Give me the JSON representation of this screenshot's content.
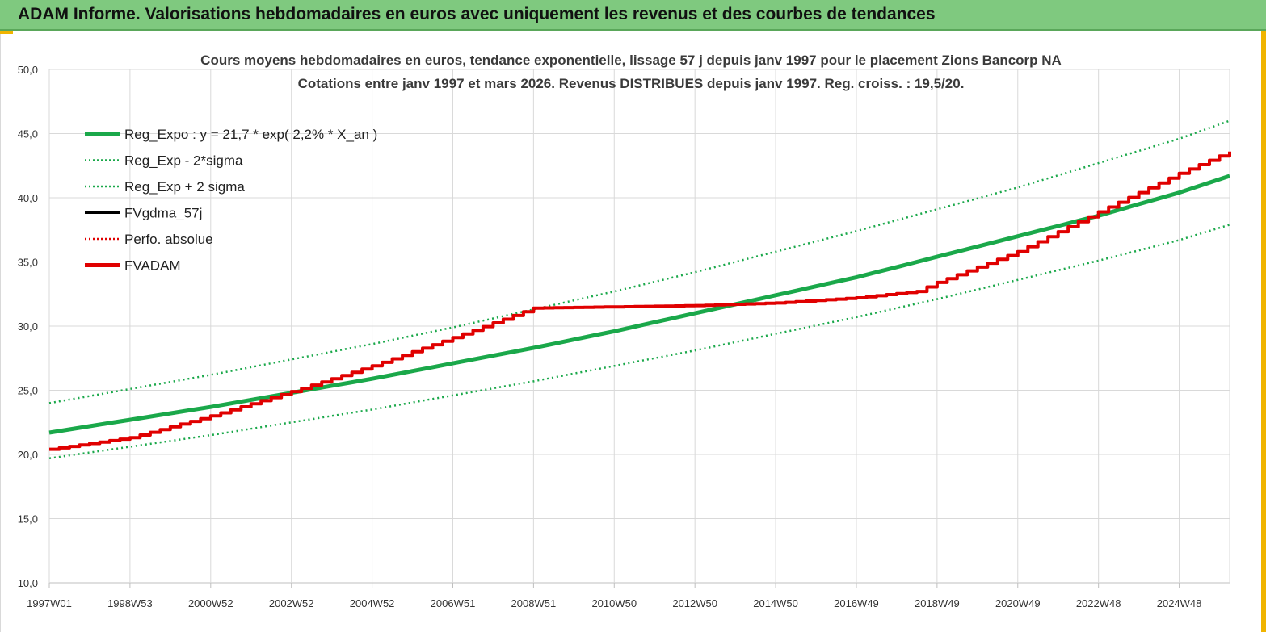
{
  "header": {
    "title": "ADAM Informe. Valorisations hebdomadaires en euros avec uniquement les revenus et des courbes de tendances"
  },
  "colors": {
    "green": "#1aa84a",
    "red": "#e00000",
    "black": "#000000",
    "header_bg": "#7fc97f",
    "accent": "#f0b400"
  },
  "chart_data": {
    "type": "line",
    "title": [
      "Cours moyens hebdomadaires en euros, tendance exponentielle, lissage 57 j depuis janv 1997 pour le placement Zions Bancorp NA",
      "Cotations entre janv 1997 et mars 2026. Revenus DISTRIBUES depuis janv 1997. Reg. croiss. : 19,5/20."
    ],
    "ylim": [
      10,
      50
    ],
    "yticks": [
      10,
      15,
      20,
      25,
      30,
      35,
      40,
      45,
      50
    ],
    "ytick_labels": [
      "10,0",
      "15,0",
      "20,0",
      "25,0",
      "30,0",
      "35,0",
      "40,0",
      "45,0",
      "50,0"
    ],
    "x_range_years": [
      1997.0,
      2026.25
    ],
    "xticks": [
      {
        "label": "1997W01",
        "year": 1997.0
      },
      {
        "label": "1998W53",
        "year": 1999.0
      },
      {
        "label": "2000W52",
        "year": 2001.0
      },
      {
        "label": "2002W52",
        "year": 2003.0
      },
      {
        "label": "2004W52",
        "year": 2005.0
      },
      {
        "label": "2006W51",
        "year": 2007.0
      },
      {
        "label": "2008W51",
        "year": 2009.0
      },
      {
        "label": "2010W50",
        "year": 2011.0
      },
      {
        "label": "2012W50",
        "year": 2013.0
      },
      {
        "label": "2014W50",
        "year": 2015.0
      },
      {
        "label": "2016W49",
        "year": 2017.0
      },
      {
        "label": "2018W49",
        "year": 2019.0
      },
      {
        "label": "2020W49",
        "year": 2021.0
      },
      {
        "label": "2022W48",
        "year": 2023.0
      },
      {
        "label": "2024W48",
        "year": 2025.0
      }
    ],
    "grid": true,
    "legend_placement": "top-left",
    "series": [
      {
        "name": "Reg_Expo : y = 21,7 * exp( 2,2% *  X_an )",
        "style": "solid-thick",
        "color": "#1aa84a",
        "x": [
          1997,
          1999,
          2001,
          2003,
          2005,
          2007,
          2009,
          2011,
          2013,
          2015,
          2017,
          2019,
          2021,
          2023,
          2025,
          2026.25
        ],
        "y": [
          21.7,
          22.7,
          23.7,
          24.8,
          25.9,
          27.1,
          28.3,
          29.6,
          31.0,
          32.4,
          33.8,
          35.4,
          37.0,
          38.6,
          40.4,
          41.7
        ]
      },
      {
        "name": "Reg_Exp - 2*sigma",
        "style": "dotted",
        "color": "#1aa84a",
        "x": [
          1997,
          1999,
          2001,
          2003,
          2005,
          2007,
          2009,
          2011,
          2013,
          2015,
          2017,
          2019,
          2021,
          2023,
          2025,
          2026.25
        ],
        "y": [
          19.7,
          20.6,
          21.5,
          22.5,
          23.5,
          24.6,
          25.7,
          26.9,
          28.1,
          29.4,
          30.7,
          32.1,
          33.6,
          35.1,
          36.7,
          37.9
        ]
      },
      {
        "name": "Reg_Exp + 2 sigma",
        "style": "dotted",
        "color": "#1aa84a",
        "x": [
          1997,
          1999,
          2001,
          2003,
          2005,
          2007,
          2009,
          2011,
          2013,
          2015,
          2017,
          2019,
          2021,
          2023,
          2025,
          2026.25
        ],
        "y": [
          24.0,
          25.1,
          26.2,
          27.4,
          28.6,
          29.9,
          31.3,
          32.7,
          34.2,
          35.8,
          37.4,
          39.1,
          40.8,
          42.7,
          44.6,
          46.0
        ]
      },
      {
        "name": "FVgdma_57j",
        "style": "solid",
        "color": "#000000",
        "x": [],
        "y": []
      },
      {
        "name": "Perfo. absolue",
        "style": "dotted",
        "color": "#e00000",
        "x": [],
        "y": []
      },
      {
        "name": "FVADAM",
        "style": "solid-thick",
        "color": "#e00000",
        "x": [
          1997,
          1999,
          2001,
          2003,
          2005,
          2007,
          2009,
          2011,
          2013,
          2015,
          2017,
          2018.5,
          2019,
          2021,
          2023,
          2025,
          2026.25
        ],
        "y": [
          20.4,
          21.3,
          23.0,
          24.9,
          26.9,
          29.1,
          31.4,
          31.5,
          31.6,
          31.8,
          32.2,
          32.7,
          33.4,
          35.8,
          38.9,
          41.9,
          43.6
        ]
      }
    ]
  }
}
